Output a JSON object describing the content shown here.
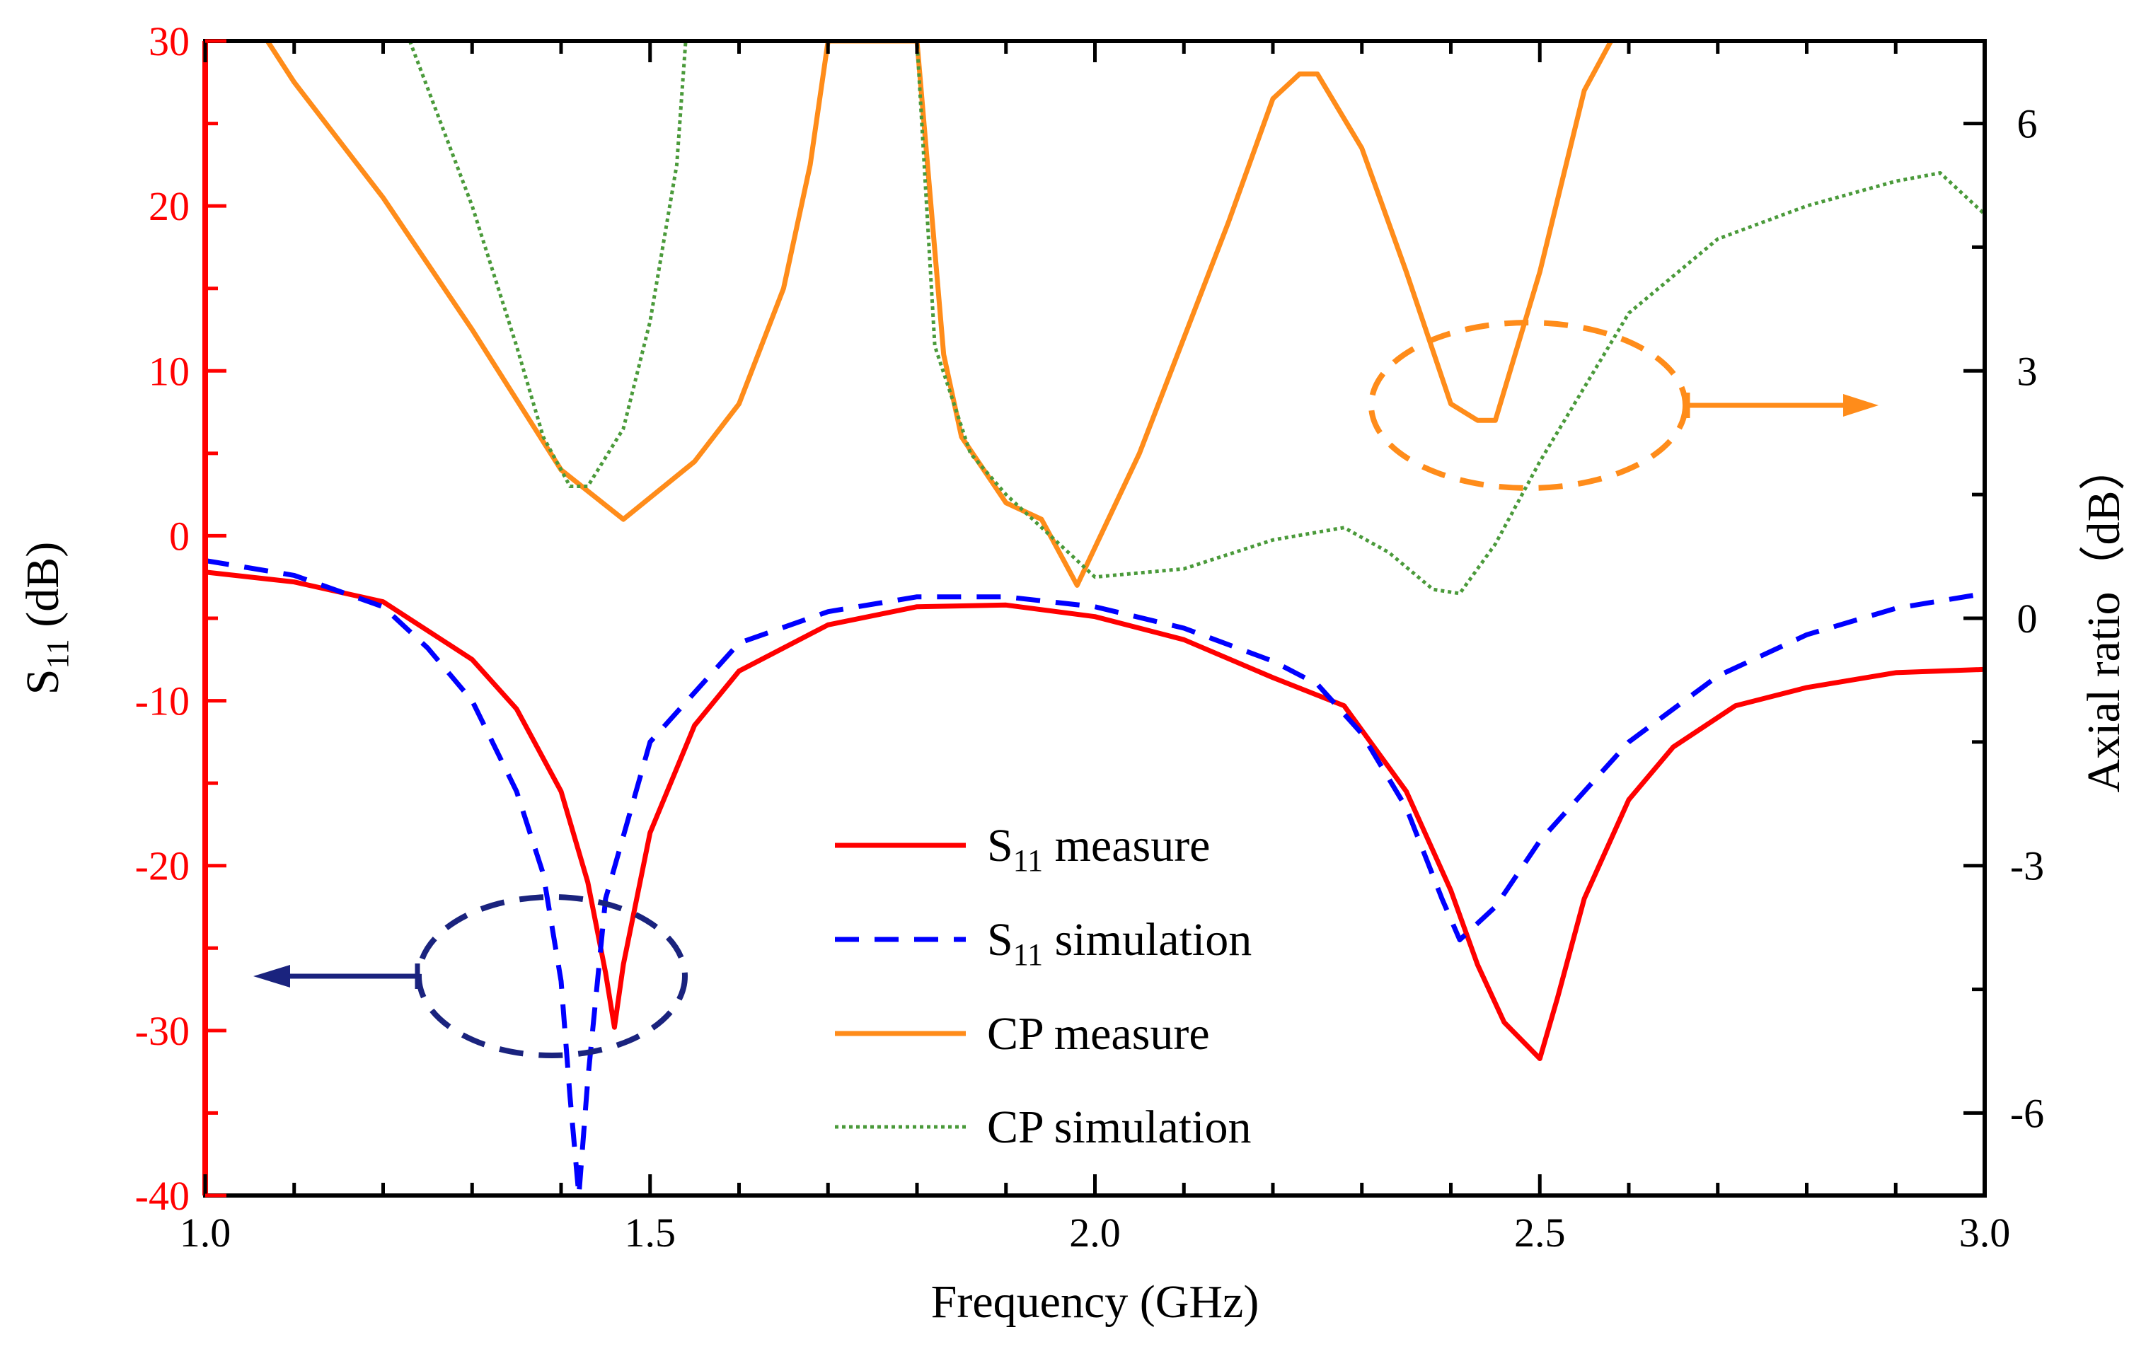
{
  "chart_data": {
    "type": "line",
    "title": "",
    "xlabel": "Frequency (GHz)",
    "xlim": [
      1.0,
      3.0
    ],
    "x_ticks": [
      1.0,
      1.5,
      2.0,
      2.5,
      3.0
    ],
    "x_tick_labels": [
      "1.0",
      "1.5",
      "2.0",
      "2.5",
      "3.0"
    ],
    "left_axis": {
      "label_main": "S",
      "label_sub": "11",
      "label_unit": " (dB)",
      "ylim": [
        -40,
        30
      ],
      "ticks": [
        -40,
        -30,
        -20,
        -10,
        0,
        10,
        20,
        30
      ],
      "tick_labels": [
        "-40",
        "-30",
        "-20",
        "-10",
        "0",
        "10",
        "20",
        "30"
      ],
      "color": "#ff0000"
    },
    "right_axis": {
      "label": "Axial ratio（dB）",
      "ylim": [
        -7,
        7
      ],
      "ticks": [
        -6,
        -3,
        0,
        3,
        6
      ],
      "tick_labels": [
        "-6",
        "-3",
        "0",
        "3",
        "6"
      ],
      "color": "#000000"
    },
    "series": [
      {
        "name": "S11 measure",
        "legend_main": "S",
        "legend_sub": "11",
        "legend_rest": " measure",
        "axis": "left",
        "color": "#ff0000",
        "style": "solid",
        "x": [
          1.0,
          1.1,
          1.2,
          1.3,
          1.35,
          1.4,
          1.43,
          1.45,
          1.46,
          1.47,
          1.5,
          1.55,
          1.6,
          1.7,
          1.8,
          1.9,
          2.0,
          2.1,
          2.2,
          2.28,
          2.35,
          2.4,
          2.43,
          2.46,
          2.5,
          2.52,
          2.55,
          2.6,
          2.65,
          2.72,
          2.8,
          2.9,
          3.0
        ],
        "values": [
          -2.2,
          -2.8,
          -4.0,
          -7.5,
          -10.5,
          -15.5,
          -21.0,
          -26.5,
          -29.8,
          -26.0,
          -18.0,
          -11.5,
          -8.2,
          -5.4,
          -4.3,
          -4.2,
          -4.9,
          -6.3,
          -8.6,
          -10.3,
          -15.5,
          -21.5,
          -26.0,
          -29.5,
          -31.7,
          -28.0,
          -22.0,
          -16.0,
          -12.8,
          -10.3,
          -9.2,
          -8.3,
          -8.1
        ]
      },
      {
        "name": "S11 simulation",
        "legend_main": "S",
        "legend_sub": "11",
        "legend_rest": " simulation",
        "axis": "left",
        "color": "#0000ff",
        "style": "dashed",
        "x": [
          1.0,
          1.1,
          1.2,
          1.25,
          1.3,
          1.35,
          1.38,
          1.4,
          1.41,
          1.42,
          1.43,
          1.45,
          1.5,
          1.6,
          1.7,
          1.8,
          1.9,
          2.0,
          2.1,
          2.2,
          2.25,
          2.3,
          2.35,
          2.39,
          2.41,
          2.45,
          2.5,
          2.6,
          2.7,
          2.8,
          2.9,
          3.0
        ],
        "values": [
          -1.5,
          -2.4,
          -4.3,
          -6.8,
          -10.0,
          -15.5,
          -20.5,
          -27.0,
          -34.0,
          -40.0,
          -33.0,
          -22.0,
          -12.5,
          -6.5,
          -4.6,
          -3.7,
          -3.7,
          -4.3,
          -5.6,
          -7.6,
          -9.0,
          -12.0,
          -16.5,
          -22.0,
          -24.5,
          -22.5,
          -18.5,
          -12.5,
          -8.5,
          -6.0,
          -4.4,
          -3.5
        ]
      },
      {
        "name": "CP measure",
        "legend_main": "CP",
        "legend_sub": "",
        "legend_rest": " measure",
        "axis": "right",
        "color": "#ff8c1a",
        "style": "solid",
        "x": [
          1.07,
          1.1,
          1.2,
          1.3,
          1.4,
          1.47,
          1.55,
          1.6,
          1.65,
          1.68,
          1.7,
          1.8,
          1.83,
          1.85,
          1.9,
          1.94,
          1.98,
          2.05,
          2.15,
          2.2,
          2.23,
          2.25,
          2.3,
          2.35,
          2.4,
          2.43,
          2.45,
          2.5,
          2.55,
          2.58
        ],
        "values": [
          7.0,
          6.5,
          5.1,
          3.5,
          1.8,
          1.2,
          1.9,
          2.6,
          4.0,
          5.5,
          7.0,
          7.0,
          3.2,
          2.2,
          1.4,
          1.2,
          0.4,
          2.0,
          4.8,
          6.3,
          6.6,
          6.6,
          5.7,
          4.2,
          2.6,
          2.4,
          2.4,
          4.2,
          6.4,
          7.0
        ]
      },
      {
        "name": "CP simulation",
        "legend_main": "CP",
        "legend_sub": "",
        "legend_rest": " simulation",
        "axis": "right",
        "color": "#4a9a3a",
        "style": "dotted",
        "x": [
          1.23,
          1.3,
          1.35,
          1.38,
          1.41,
          1.43,
          1.47,
          1.5,
          1.53,
          1.54,
          1.8,
          1.82,
          1.86,
          1.9,
          1.95,
          2.0,
          2.1,
          2.2,
          2.28,
          2.33,
          2.38,
          2.41,
          2.45,
          2.5,
          2.6,
          2.7,
          2.8,
          2.9,
          2.95,
          3.0
        ],
        "values": [
          7.0,
          5.0,
          3.3,
          2.2,
          1.6,
          1.6,
          2.3,
          3.6,
          5.5,
          7.0,
          7.0,
          3.3,
          2.0,
          1.5,
          1.0,
          0.5,
          0.6,
          0.95,
          1.1,
          0.8,
          0.35,
          0.3,
          0.9,
          1.9,
          3.7,
          4.6,
          5.0,
          5.3,
          5.4,
          4.9
        ]
      }
    ]
  }
}
